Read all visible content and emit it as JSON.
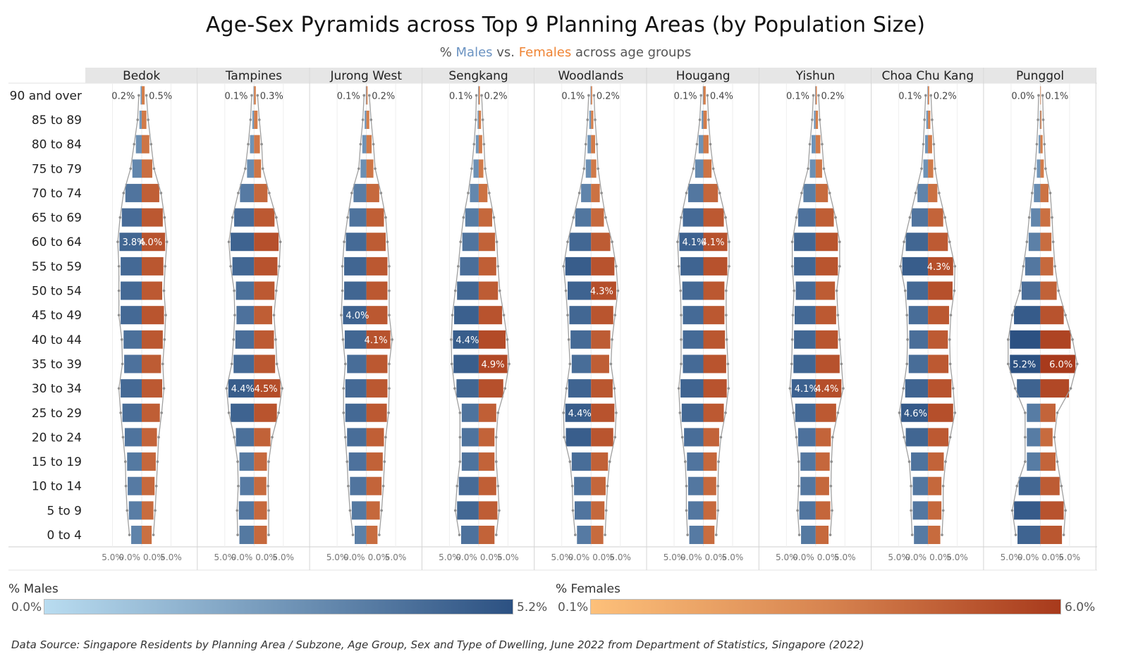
{
  "title": "Age-Sex Pyramids across Top 9 Planning Areas (by Population Size)",
  "subtitle": {
    "prefix": "% ",
    "males": "Males",
    "middle": " vs. ",
    "females": "Females",
    "suffix": " across age groups"
  },
  "colors": {
    "male_light": "#b9dcf0",
    "male_dark": "#2c5182",
    "female_light": "#fdc07a",
    "female_dark": "#a83a1c",
    "header_bg": "#e6e6e6",
    "outline": "#a0a0a0"
  },
  "legend": {
    "males": {
      "title": "% Males",
      "min": "0.0%",
      "max": "5.2%"
    },
    "females": {
      "title": "% Females",
      "min": "0.1%",
      "max": "6.0%"
    }
  },
  "source": "Data Source: Singapore Residents by Planning Area / Subzone, Age Group, Sex and Type of Dwelling, June 2022 from Department of Statistics, Singapore (2022)",
  "chart_data": {
    "type": "bar",
    "orientation": "horizontal",
    "x_ticks": [
      "5.0%",
      "0.0%",
      "0.0%",
      "5.0%"
    ],
    "age_groups": [
      "90 and over",
      "85 to 89",
      "80 to 84",
      "75 to 79",
      "70 to 74",
      "65 to 69",
      "60 to 64",
      "55 to 59",
      "50 to 54",
      "45 to 49",
      "40 to 44",
      "35 to 39",
      "30 to 34",
      "25 to 29",
      "20 to 24",
      "15 to 19",
      "10 to 14",
      "5 to 9",
      "0 to 4"
    ],
    "areas": [
      {
        "name": "Bedok",
        "males": [
          0.2,
          0.4,
          1.0,
          1.6,
          2.8,
          3.4,
          3.8,
          3.6,
          3.6,
          3.6,
          3.1,
          3.0,
          3.6,
          3.3,
          2.9,
          2.5,
          2.4,
          2.2,
          1.8
        ],
        "females": [
          0.5,
          0.8,
          1.3,
          1.8,
          3.0,
          3.6,
          4.0,
          3.7,
          3.5,
          3.8,
          3.6,
          3.3,
          3.5,
          3.1,
          2.6,
          2.4,
          2.2,
          2.0,
          1.7
        ],
        "labels": [
          {
            "row": 0,
            "side": "m",
            "text": "0.2%",
            "pos": "end"
          },
          {
            "row": 0,
            "side": "f",
            "text": "0.5%",
            "pos": "end"
          },
          {
            "row": 6,
            "side": "m",
            "text": "3.8%",
            "pos": "in"
          },
          {
            "row": 6,
            "side": "f",
            "text": "4.0%",
            "pos": "in"
          }
        ]
      },
      {
        "name": "Tampines",
        "males": [
          0.1,
          0.3,
          0.7,
          1.2,
          2.4,
          3.4,
          4.0,
          3.7,
          3.1,
          3.0,
          3.2,
          3.5,
          4.4,
          4.0,
          3.1,
          2.5,
          2.4,
          2.6,
          2.5
        ],
        "females": [
          0.3,
          0.6,
          1.0,
          1.2,
          2.3,
          3.5,
          4.2,
          4.0,
          3.5,
          3.1,
          3.4,
          3.6,
          4.5,
          3.9,
          2.8,
          2.2,
          2.1,
          2.2,
          2.2
        ],
        "labels": [
          {
            "row": 0,
            "side": "m",
            "text": "0.1%",
            "pos": "end"
          },
          {
            "row": 0,
            "side": "f",
            "text": "0.3%",
            "pos": "end"
          },
          {
            "row": 12,
            "side": "m",
            "text": "4.4%",
            "pos": "in"
          },
          {
            "row": 12,
            "side": "f",
            "text": "4.5%",
            "pos": "in"
          }
        ]
      },
      {
        "name": "Jurong West",
        "males": [
          0.1,
          0.3,
          0.7,
          1.0,
          2.2,
          2.9,
          3.5,
          3.8,
          3.8,
          4.0,
          3.7,
          3.3,
          3.6,
          3.6,
          3.3,
          3.0,
          2.8,
          2.5,
          2.0
        ],
        "females": [
          0.2,
          0.5,
          0.9,
          1.2,
          2.2,
          3.0,
          3.3,
          3.6,
          3.6,
          3.6,
          4.1,
          3.6,
          3.6,
          3.5,
          3.0,
          2.8,
          2.6,
          2.3,
          1.9
        ],
        "labels": [
          {
            "row": 0,
            "side": "m",
            "text": "0.1%",
            "pos": "end"
          },
          {
            "row": 0,
            "side": "f",
            "text": "0.2%",
            "pos": "end"
          },
          {
            "row": 9,
            "side": "m",
            "text": "4.0%",
            "pos": "in"
          },
          {
            "row": 10,
            "side": "f",
            "text": "4.1%",
            "pos": "in"
          }
        ]
      },
      {
        "name": "Sengkang",
        "males": [
          0.1,
          0.2,
          0.5,
          0.9,
          1.5,
          2.3,
          2.8,
          3.2,
          3.7,
          4.2,
          4.4,
          4.3,
          3.8,
          2.9,
          2.9,
          2.9,
          3.4,
          3.7,
          3.0
        ],
        "females": [
          0.2,
          0.4,
          0.6,
          0.8,
          1.5,
          2.3,
          2.8,
          3.0,
          3.3,
          4.0,
          4.6,
          4.9,
          4.2,
          3.0,
          2.7,
          2.7,
          3.0,
          3.2,
          2.7
        ],
        "labels": [
          {
            "row": 0,
            "side": "m",
            "text": "0.1%",
            "pos": "end"
          },
          {
            "row": 0,
            "side": "f",
            "text": "0.2%",
            "pos": "end"
          },
          {
            "row": 10,
            "side": "m",
            "text": "4.4%",
            "pos": "in"
          },
          {
            "row": 11,
            "side": "f",
            "text": "4.9%",
            "pos": "in"
          }
        ]
      },
      {
        "name": "Woodlands",
        "males": [
          0.1,
          0.3,
          0.6,
          0.9,
          1.7,
          2.7,
          3.7,
          4.4,
          4.0,
          3.7,
          3.5,
          3.3,
          3.9,
          4.4,
          4.3,
          3.3,
          2.9,
          2.8,
          2.4
        ],
        "females": [
          0.2,
          0.4,
          0.7,
          0.9,
          1.5,
          2.2,
          3.3,
          4.0,
          4.3,
          3.8,
          3.3,
          3.1,
          3.7,
          4.0,
          3.8,
          2.9,
          2.5,
          2.3,
          2.1
        ],
        "labels": [
          {
            "row": 0,
            "side": "m",
            "text": "0.1%",
            "pos": "end"
          },
          {
            "row": 0,
            "side": "f",
            "text": "0.2%",
            "pos": "end"
          },
          {
            "row": 8,
            "side": "f",
            "text": "4.3%",
            "pos": "in"
          },
          {
            "row": 13,
            "side": "m",
            "text": "4.4%",
            "pos": "in"
          }
        ]
      },
      {
        "name": "Hougang",
        "males": [
          0.1,
          0.3,
          0.8,
          1.4,
          2.6,
          3.5,
          4.1,
          3.9,
          3.6,
          3.5,
          3.5,
          3.5,
          3.9,
          3.7,
          3.3,
          2.8,
          2.6,
          2.6,
          2.4
        ],
        "females": [
          0.4,
          0.6,
          0.9,
          1.4,
          2.5,
          3.5,
          4.1,
          4.1,
          3.6,
          3.6,
          3.7,
          3.9,
          4.0,
          3.5,
          2.7,
          2.3,
          2.2,
          2.2,
          1.9
        ],
        "labels": [
          {
            "row": 0,
            "side": "m",
            "text": "0.1%",
            "pos": "end"
          },
          {
            "row": 0,
            "side": "f",
            "text": "0.4%",
            "pos": "end"
          },
          {
            "row": 6,
            "side": "m",
            "text": "4.1%",
            "pos": "in"
          },
          {
            "row": 6,
            "side": "f",
            "text": "4.1%",
            "pos": "in"
          }
        ]
      },
      {
        "name": "Yishun",
        "males": [
          0.1,
          0.3,
          0.7,
          1.0,
          2.1,
          3.0,
          3.7,
          3.7,
          3.4,
          3.6,
          3.7,
          3.8,
          4.1,
          3.5,
          3.0,
          2.6,
          2.6,
          2.8,
          2.5
        ],
        "females": [
          0.2,
          0.4,
          0.8,
          1.1,
          2.1,
          3.1,
          3.8,
          3.8,
          3.3,
          3.5,
          3.8,
          4.1,
          4.4,
          3.5,
          2.6,
          2.4,
          2.3,
          2.5,
          2.2
        ],
        "labels": [
          {
            "row": 0,
            "side": "m",
            "text": "0.1%",
            "pos": "end"
          },
          {
            "row": 0,
            "side": "f",
            "text": "0.2%",
            "pos": "end"
          },
          {
            "row": 12,
            "side": "m",
            "text": "4.1%",
            "pos": "in"
          },
          {
            "row": 12,
            "side": "f",
            "text": "4.4%",
            "pos": "in"
          }
        ]
      },
      {
        "name": "Choa Chu Kang",
        "males": [
          0.1,
          0.3,
          0.5,
          0.8,
          1.8,
          2.8,
          3.8,
          4.4,
          3.6,
          3.3,
          3.2,
          3.3,
          3.9,
          4.6,
          3.8,
          2.9,
          2.6,
          2.6,
          2.4
        ],
        "females": [
          0.2,
          0.4,
          0.7,
          0.9,
          1.6,
          2.6,
          3.4,
          4.3,
          4.2,
          3.6,
          3.4,
          3.5,
          4.0,
          4.3,
          3.5,
          2.7,
          2.3,
          2.3,
          2.1
        ],
        "labels": [
          {
            "row": 0,
            "side": "m",
            "text": "0.1%",
            "pos": "end"
          },
          {
            "row": 0,
            "side": "f",
            "text": "0.2%",
            "pos": "end"
          },
          {
            "row": 7,
            "side": "f",
            "text": "4.3%",
            "pos": "in"
          },
          {
            "row": 13,
            "side": "m",
            "text": "4.6%",
            "pos": "in"
          }
        ]
      },
      {
        "name": "Punggol",
        "males": [
          0.0,
          0.1,
          0.3,
          0.6,
          1.1,
          1.6,
          2.0,
          2.6,
          3.2,
          4.5,
          5.2,
          5.2,
          4.0,
          2.3,
          2.3,
          2.3,
          3.7,
          4.5,
          3.9
        ],
        "females": [
          0.1,
          0.2,
          0.4,
          0.6,
          1.4,
          1.7,
          1.9,
          2.2,
          2.8,
          4.0,
          5.2,
          6.0,
          4.9,
          2.6,
          2.1,
          2.6,
          3.3,
          4.0,
          3.7
        ],
        "labels": [
          {
            "row": 0,
            "side": "m",
            "text": "0.0%",
            "pos": "end"
          },
          {
            "row": 0,
            "side": "f",
            "text": "0.1%",
            "pos": "end"
          },
          {
            "row": 11,
            "side": "m",
            "text": "5.2%",
            "pos": "in"
          },
          {
            "row": 11,
            "side": "f",
            "text": "6.0%",
            "pos": "in"
          }
        ]
      }
    ]
  }
}
